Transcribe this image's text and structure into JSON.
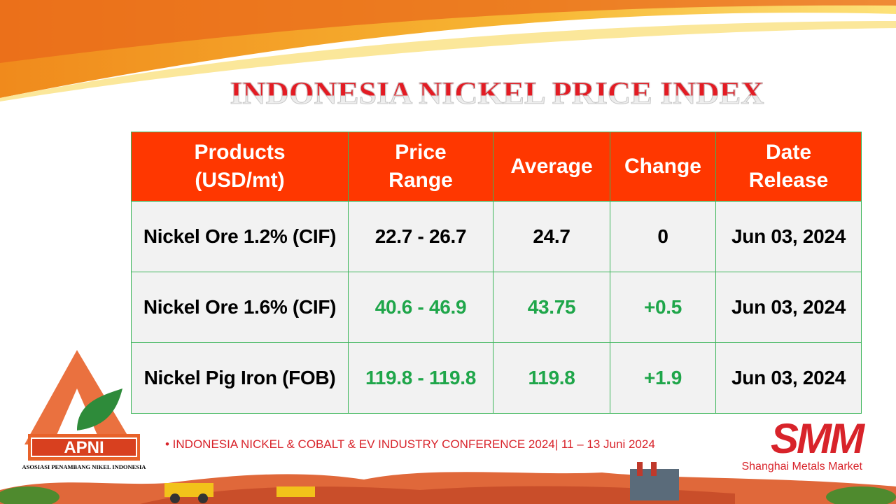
{
  "title": "INDONESIA NICKEL PRICE INDEX",
  "table": {
    "headers": [
      "Products\n(USD/mt)",
      "Price Range",
      "Average",
      "Change",
      "Date Release"
    ],
    "header_lines": [
      [
        "Products",
        "(USD/mt)"
      ],
      [
        "Price",
        "Range"
      ],
      [
        "Average"
      ],
      [
        "Change"
      ],
      [
        "Date",
        "Release"
      ]
    ],
    "rows": [
      {
        "product": "Nickel Ore 1.2% (CIF)",
        "range": "22.7 - 26.7",
        "average": "24.7",
        "change": "0",
        "date": "Jun 03, 2024"
      },
      {
        "product": "Nickel Ore 1.6% (CIF)",
        "range": "40.6 - 46.9",
        "average": "43.75",
        "change": "+0.5",
        "date": "Jun 03, 2024"
      },
      {
        "product": "Nickel Pig Iron (FOB)",
        "range": "119.8 - 119.8",
        "average": "119.8",
        "change": "+1.9",
        "date": "Jun 03, 2024"
      }
    ]
  },
  "footer": {
    "conference": "•  INDONESIA NICKEL & COBALT & EV INDUSTRY CONFERENCE 2024| 11 – 13 Juni 2024",
    "apni_logo": "APNI",
    "apni_name": "ASOSIASI PENAMBANG NIKEL INDONESIA",
    "smm_logo": "SMM",
    "smm_name": "Shanghai Metals Market"
  },
  "colors": {
    "header_bg": "#ff3700",
    "positive": "#1fa64a",
    "brand_red": "#d8232a",
    "title_red": "#e31b23"
  }
}
